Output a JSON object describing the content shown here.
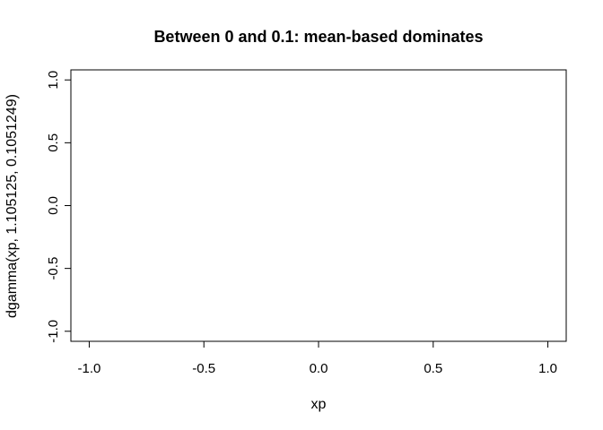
{
  "chart_data": {
    "type": "line",
    "title": "Between 0 and 0.1: mean-based dominates",
    "xlabel": "xp",
    "ylabel": "dgamma(xp, 1.105125, 0.1051249)",
    "xlim": [
      -1.08,
      1.08
    ],
    "ylim": [
      -1.08,
      1.08
    ],
    "x_ticks": [
      -1.0,
      -0.5,
      0.0,
      0.5,
      1.0
    ],
    "x_tick_labels": [
      "-1.0",
      "-0.5",
      "0.0",
      "0.5",
      "1.0"
    ],
    "y_ticks": [
      -1.0,
      -0.5,
      0.0,
      0.5,
      1.0
    ],
    "y_tick_labels": [
      "-1.0",
      "-0.5",
      "0.0",
      "0.5",
      "1.0"
    ],
    "grid": false,
    "series": []
  }
}
